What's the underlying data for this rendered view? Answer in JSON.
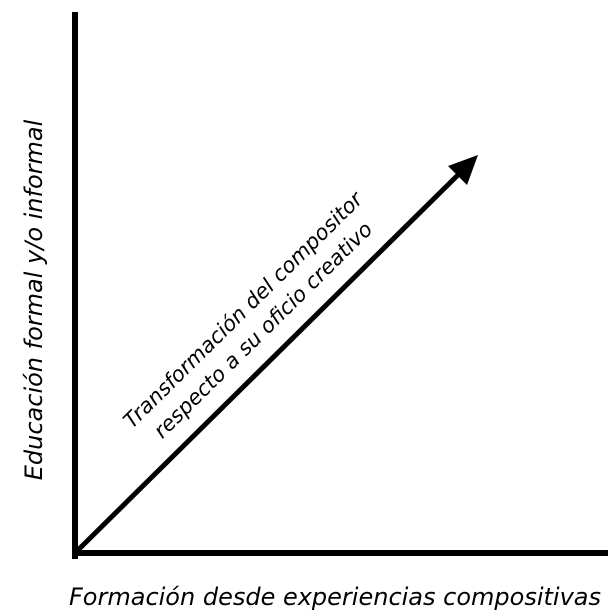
{
  "diagram": {
    "y_axis_label": "Educación formal y/o informal",
    "x_axis_label": "Formación desde experiencias compositivas",
    "arrow_label_line1": "Transformación del compositor",
    "arrow_label_line2": "respecto a su oficio creativo"
  },
  "colors": {
    "ink": "#000000",
    "background": "#ffffff"
  }
}
